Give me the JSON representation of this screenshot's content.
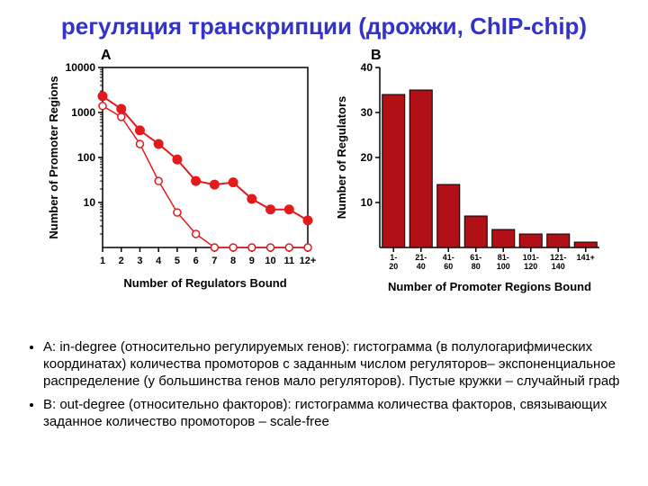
{
  "title": {
    "text": "регуляция транскрипции (дрожжи, ChIP-chip)",
    "color": "#3333cc",
    "fontsize": 26
  },
  "panelA": {
    "label": "A",
    "type": "line-scatter-semilogy",
    "xlabel": "Number of Regulators Bound",
    "ylabel": "Number of Promoter Regions",
    "label_fontsize": 12,
    "axis_color": "#000000",
    "series_filled": {
      "color": "#e31a1c",
      "marker": "circle-filled",
      "marker_size": 5,
      "line_width": 2,
      "x": [
        1,
        2,
        3,
        4,
        5,
        6,
        7,
        8,
        9,
        10,
        11,
        12
      ],
      "y": [
        2300,
        1200,
        400,
        200,
        90,
        30,
        25,
        28,
        12,
        7,
        7,
        4
      ]
    },
    "series_open": {
      "color": "#e31a1c",
      "marker": "circle-open",
      "marker_size": 4,
      "line_width": 1.5,
      "x": [
        1,
        2,
        3,
        4,
        5,
        6,
        7,
        8,
        9,
        10,
        11,
        12
      ],
      "y": [
        1400,
        800,
        200,
        30,
        6,
        2,
        1,
        1,
        1,
        1,
        1,
        1
      ]
    },
    "xlim": [
      1,
      12
    ],
    "xticks": [
      1,
      2,
      3,
      4,
      5,
      6,
      7,
      8,
      9,
      10,
      11,
      "12+"
    ],
    "ylim_log": [
      1,
      10000
    ],
    "yticks": [
      10,
      100,
      1000,
      10000
    ],
    "grid": false
  },
  "panelB": {
    "label": "B",
    "type": "bar",
    "xlabel": "Number of Promoter Regions Bound",
    "ylabel": "Number of Regulators",
    "label_fontsize": 12,
    "axis_color": "#000000",
    "categories": [
      "1-\n20",
      "21-\n40",
      "41-\n60",
      "61-\n80",
      "81-\n100",
      "101-\n120",
      "121-\n140",
      "141+"
    ],
    "values": [
      34,
      35,
      14,
      7,
      4,
      3,
      3,
      1.2
    ],
    "bar_color": "#b11116",
    "bar_border": "#000000",
    "bar_width": 0.82,
    "ylim": [
      0,
      40
    ],
    "yticks": [
      10,
      20,
      30,
      40
    ],
    "background_color": "#ffffff"
  },
  "bullets": [
    "A: in-degree (относительно регулируемых генов): гистограмма (в полулогарифмических координатах) количества промоторов с заданным числом регуляторов– экспоненциальное распределение (у большинства генов мало регуляторов). Пустые кружки – случайный граф",
    "B: out-degree (относительно факторов): гистограмма количества факторов, связывающих заданное количество промоторов – scale-free"
  ],
  "bullet_color": "#000000"
}
